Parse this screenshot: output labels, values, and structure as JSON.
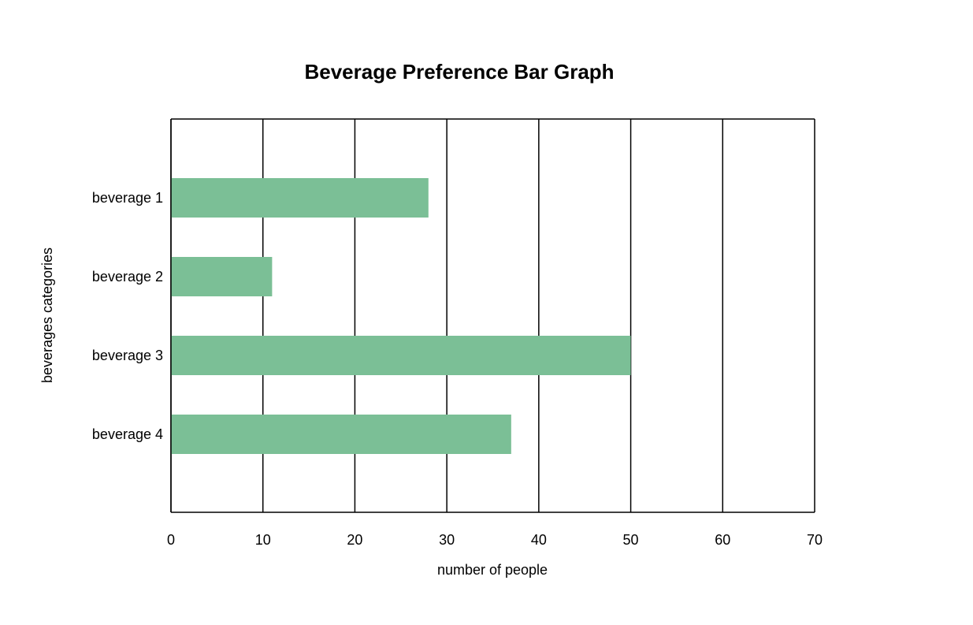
{
  "chart_data": {
    "type": "bar",
    "orientation": "horizontal",
    "title": "Beverage Preference Bar Graph",
    "xlabel": "number of people",
    "ylabel": "beverages categories",
    "categories": [
      "beverage 1",
      "beverage 2",
      "beverage 3",
      "beverage 4"
    ],
    "values": [
      28,
      11,
      50,
      37
    ],
    "xlim": [
      0,
      70
    ],
    "x_ticks": [
      0,
      10,
      20,
      30,
      40,
      50,
      60,
      70
    ],
    "x_tick_labels": [
      "0",
      "10",
      "20",
      "30",
      "40",
      "50",
      "60",
      "70"
    ],
    "grid": "vertical",
    "legend": "none",
    "bar_color": "#7bbf96",
    "grid_color": "#000000"
  }
}
